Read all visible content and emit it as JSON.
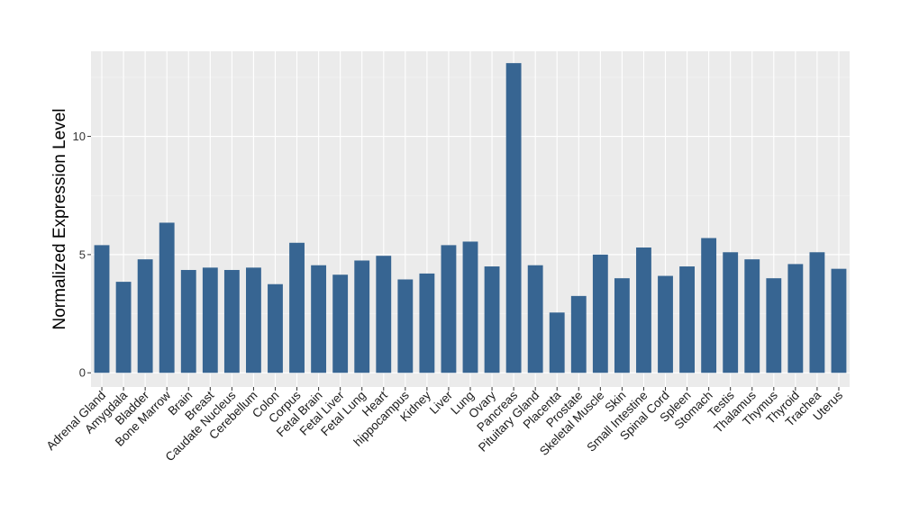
{
  "chart_data": {
    "type": "bar",
    "title": "",
    "xlabel": "",
    "ylabel": "Normalized Expression Level",
    "ylim": [
      -0.6,
      13.6
    ],
    "yticks": [
      0,
      5,
      10
    ],
    "grid": true,
    "bar_color": "#376592",
    "panel_color": "#ebebeb",
    "categories": [
      "Adrenal Gland",
      "Amygdala",
      "Bladder",
      "Bone Marrow",
      "Brain",
      "Breast",
      "Caudate Nucleus",
      "Cerebellum",
      "Colon",
      "Corpus",
      "Fetal Brain",
      "Fetal Liver",
      "Fetal Lung",
      "Heart",
      "hippocampus",
      "Kidney",
      "Liver",
      "Lung",
      "Ovary",
      "Pancreas",
      "Pituitary Gland",
      "Placenta",
      "Prostate",
      "Skeletal Muscle",
      "Skin",
      "Small Intestine",
      "Spinal Cord",
      "Spleen",
      "Stomach",
      "Testis",
      "Thalamus",
      "Thymus",
      "Thyroid",
      "Trachea",
      "Uterus"
    ],
    "values": [
      5.4,
      3.85,
      4.8,
      6.35,
      4.35,
      4.45,
      4.35,
      4.45,
      3.75,
      5.5,
      4.55,
      4.15,
      4.75,
      4.95,
      3.95,
      4.2,
      5.4,
      5.55,
      4.5,
      13.1,
      4.55,
      2.55,
      3.25,
      5.0,
      4.0,
      5.3,
      4.1,
      4.5,
      5.7,
      5.1,
      4.8,
      4.0,
      4.6,
      5.1,
      4.4
    ]
  }
}
